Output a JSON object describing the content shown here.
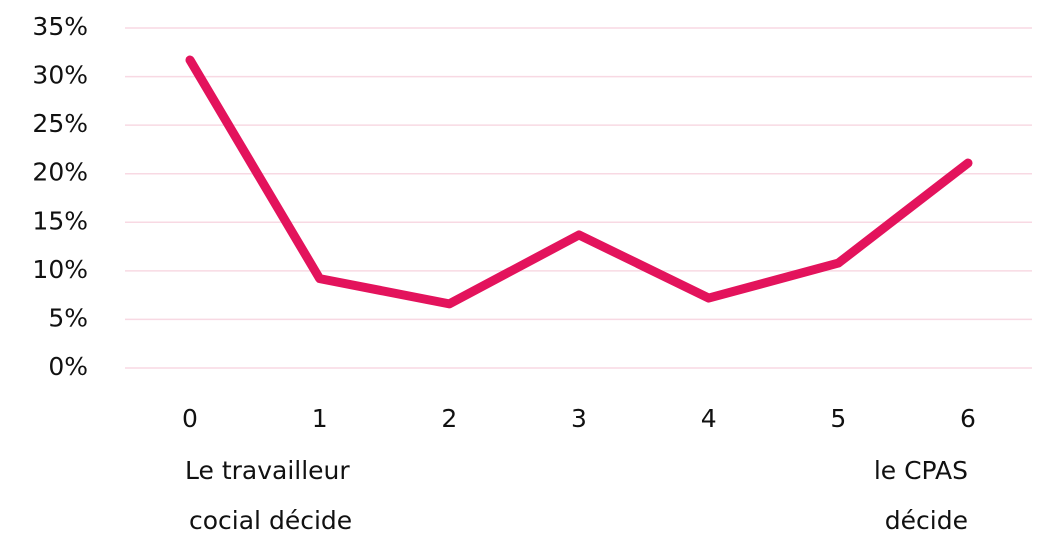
{
  "chart_data": {
    "type": "line",
    "categories": [
      "0",
      "1",
      "2",
      "3",
      "4",
      "5",
      "6"
    ],
    "series": [
      {
        "color": "#e3135c",
        "values": [
          31.7,
          9.2,
          6.6,
          13.7,
          7.2,
          10.8,
          21.1
        ]
      }
    ],
    "ylim": [
      0,
      35
    ],
    "yticks": [
      {
        "value": 0,
        "label": "0%"
      },
      {
        "value": 5,
        "label": "5%"
      },
      {
        "value": 10,
        "label": "10%"
      },
      {
        "value": 15,
        "label": "15%"
      },
      {
        "value": 20,
        "label": "20%"
      },
      {
        "value": 25,
        "label": "25%"
      },
      {
        "value": 30,
        "label": "30%"
      },
      {
        "value": 35,
        "label": "35%"
      }
    ],
    "grid": true,
    "annotations": [
      {
        "lines": [
          "Le travailleur",
          "cocial décide"
        ]
      },
      {
        "lines": [
          "le CPAS",
          "décide"
        ]
      }
    ]
  }
}
